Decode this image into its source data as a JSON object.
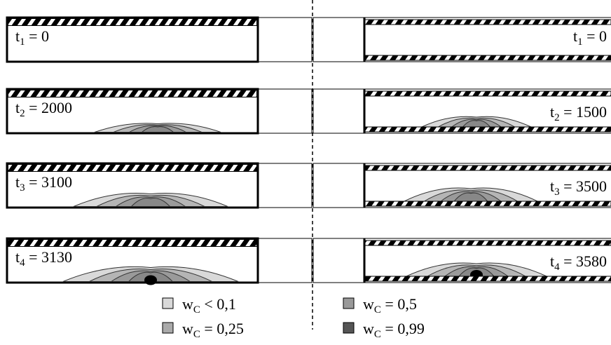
{
  "left_panels": [
    {
      "label": {
        "var": "t",
        "sub": "1",
        "rest": " = 0"
      }
    },
    {
      "label": {
        "var": "t",
        "sub": "2",
        "rest": " = 2000"
      }
    },
    {
      "label": {
        "var": "t",
        "sub": "3",
        "rest": " = 3100"
      }
    },
    {
      "label": {
        "var": "t",
        "sub": "4",
        "rest": " = 3130"
      }
    }
  ],
  "right_panels": [
    {
      "label": {
        "var": "t",
        "sub": "1",
        "rest": " = 0"
      }
    },
    {
      "label": {
        "var": "t",
        "sub": "2",
        "rest": " = 1500"
      }
    },
    {
      "label": {
        "var": "t",
        "sub": "3",
        "rest": " = 3500"
      }
    },
    {
      "label": {
        "var": "t",
        "sub": "4",
        "rest": " = 3580"
      }
    }
  ],
  "legend": [
    {
      "var": "w",
      "sub": "C",
      "rest": " < 0,1"
    },
    {
      "var": "w",
      "sub": "C",
      "rest": " = 0,25"
    },
    {
      "var": "w",
      "sub": "C",
      "rest": " = 0,5"
    },
    {
      "var": "w",
      "sub": "C",
      "rest": " = 0,99"
    }
  ]
}
